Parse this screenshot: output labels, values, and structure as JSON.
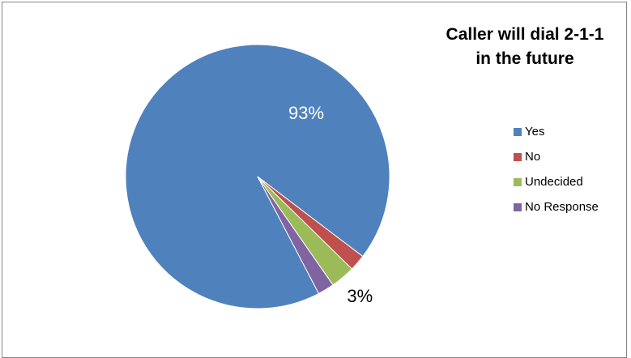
{
  "chart_data": {
    "type": "pie",
    "title": "Caller will dial 2-1-1 in the future",
    "title_lines": [
      "Caller will dial 2-1-1",
      "in the future"
    ],
    "categories": [
      "Yes",
      "No",
      "Undecided",
      "No Response"
    ],
    "values": [
      93,
      2,
      3,
      2
    ],
    "value_units": "%",
    "colors": [
      "#4f81bd",
      "#c0504d",
      "#9bbb59",
      "#8064a2"
    ],
    "data_labels": [
      {
        "category": "Yes",
        "text": "93%",
        "color": "#ffffff"
      },
      {
        "category": "Undecided",
        "text": "3%",
        "color": "#000000"
      }
    ],
    "legend_position": "right",
    "start_angle_deg": 152.4
  }
}
